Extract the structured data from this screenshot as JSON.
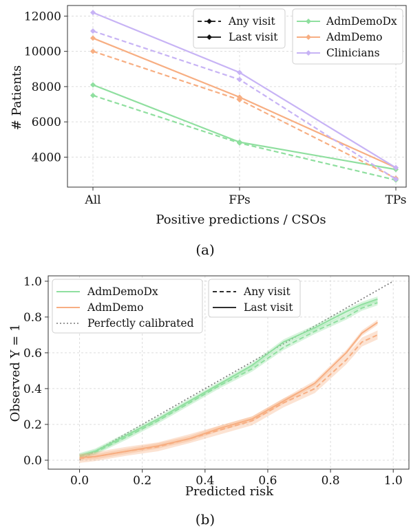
{
  "colors": {
    "AdmDemoDx": "#8fdf9f",
    "AdmDemo": "#f7ae82",
    "Clinicians": "#c7b3f5",
    "calibration": "#777777",
    "grid": "#dcdcdc",
    "axis": "#333333"
  },
  "chart_data": [
    {
      "type": "line",
      "caption": "(a)",
      "xlabel": "Positive predictions / CSOs",
      "ylabel": "# Patients",
      "categories": [
        "All",
        "FPs",
        "TPs"
      ],
      "yticks": [
        "4000",
        "6000",
        "8000",
        "10000",
        "12000"
      ],
      "ylim": [
        2300,
        12600
      ],
      "grid": true,
      "markers": "diamond",
      "style_legend": [
        {
          "label": "Any visit",
          "dash": "dashed"
        },
        {
          "label": "Last visit",
          "dash": "solid"
        }
      ],
      "model_legend": [
        "AdmDemoDx",
        "AdmDemo",
        "Clinicians"
      ],
      "series": [
        {
          "name": "AdmDemoDx",
          "style": "Any visit",
          "values": [
            7500,
            4800,
            2700
          ]
        },
        {
          "name": "AdmDemoDx",
          "style": "Last visit",
          "values": [
            8100,
            4850,
            3300
          ]
        },
        {
          "name": "AdmDemo",
          "style": "Any visit",
          "values": [
            10000,
            7250,
            2800
          ]
        },
        {
          "name": "AdmDemo",
          "style": "Last visit",
          "values": [
            10750,
            7400,
            3400
          ]
        },
        {
          "name": "Clinicians",
          "style": "Any visit",
          "values": [
            11150,
            8400,
            2750
          ]
        },
        {
          "name": "Clinicians",
          "style": "Last visit",
          "values": [
            12200,
            8800,
            3400
          ]
        }
      ]
    },
    {
      "type": "line",
      "caption": "(b)",
      "xlabel": "Predicted risk",
      "ylabel": "Observed Y = 1",
      "xticks": [
        "0.0",
        "0.2",
        "0.4",
        "0.6",
        "0.8",
        "1.0"
      ],
      "yticks": [
        "0.0",
        "0.2",
        "0.4",
        "0.6",
        "0.8",
        "1.0"
      ],
      "xlim": [
        -0.1,
        1.05
      ],
      "ylim": [
        -0.05,
        1.03
      ],
      "grid": true,
      "model_legend": [
        "AdmDemoDx",
        "AdmDemo",
        "Perfectly calibrated"
      ],
      "style_legend": [
        {
          "label": "Any visit",
          "dash": "dashed"
        },
        {
          "label": "Last visit",
          "dash": "solid"
        }
      ],
      "x": [
        0.0,
        0.05,
        0.15,
        0.25,
        0.35,
        0.45,
        0.55,
        0.65,
        0.75,
        0.85,
        0.9,
        0.95
      ],
      "series": [
        {
          "name": "AdmDemoDx",
          "style": "Last visit",
          "values": [
            0.025,
            0.05,
            0.14,
            0.23,
            0.33,
            0.43,
            0.53,
            0.66,
            0.74,
            0.83,
            0.87,
            0.9
          ],
          "band": 0.015
        },
        {
          "name": "AdmDemoDx",
          "style": "Any visit",
          "values": [
            0.02,
            0.045,
            0.13,
            0.22,
            0.32,
            0.42,
            0.51,
            0.63,
            0.72,
            0.8,
            0.85,
            0.88
          ],
          "band": 0.015
        },
        {
          "name": "AdmDemo",
          "style": "Last visit",
          "values": [
            0.015,
            0.02,
            0.05,
            0.08,
            0.12,
            0.18,
            0.23,
            0.33,
            0.43,
            0.6,
            0.71,
            0.77
          ],
          "band": 0.015
        },
        {
          "name": "AdmDemo",
          "style": "Any visit",
          "values": [
            0.01,
            0.02,
            0.05,
            0.075,
            0.12,
            0.17,
            0.22,
            0.32,
            0.4,
            0.56,
            0.66,
            0.7
          ],
          "band": 0.025
        }
      ],
      "reference": {
        "name": "Perfectly calibrated",
        "x": [
          0,
          1
        ],
        "values": [
          0,
          1
        ]
      }
    }
  ]
}
